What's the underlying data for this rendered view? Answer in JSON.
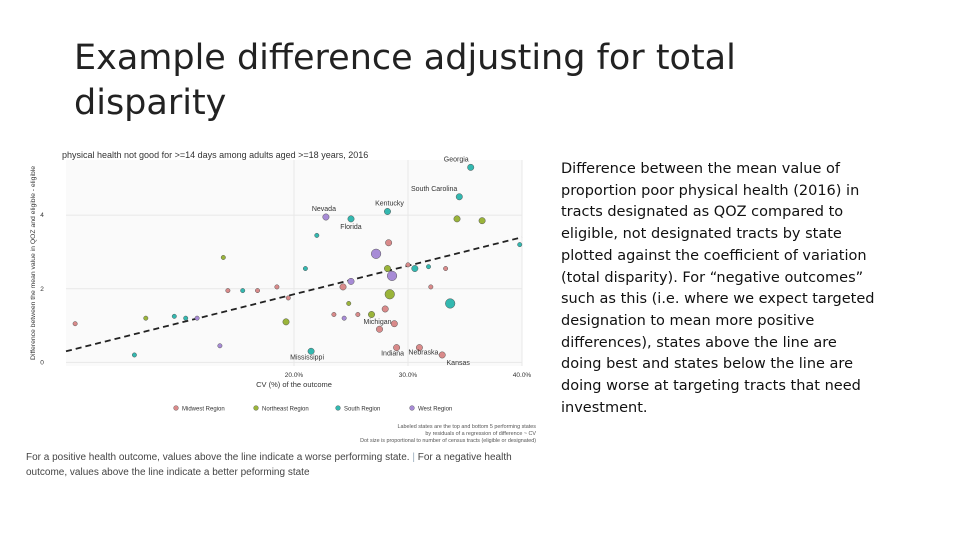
{
  "slide": {
    "title_lines": [
      "Example difference adjusting for total",
      "disparity"
    ],
    "body": "Difference between the mean value of proportion poor physical health (2016) in tracts designated as QOZ compared to eligible, not designated tracts by state plotted against the coefficient of variation (total disparity). For “negative outcomes” such as this (i.e. where we expect targeted designation to mean more positive differences), states above the line are doing best and states below the line are doing worse at targeting tracts that need investment.",
    "footnote": {
      "part1": "For a positive health outcome, values above the line indicate a worse performing state.",
      "separator": "|",
      "part2": "For a negative health outcome, values above the line indicate a better peforming state"
    }
  },
  "colors": {
    "Midwest Region": "#d98a8a",
    "Northeast Region": "#9ab43a",
    "South Region": "#33b8b0",
    "West Region": "#a78bd6"
  },
  "chart_data": {
    "type": "scatter",
    "title": "physical health not good for >=14 days among adults aged >=18 years, 2016",
    "xlabel": "CV (%) of the outcome",
    "ylabel": "Difference between the mean value in QOZ and eligible - eligible",
    "xlim": [
      0,
      40
    ],
    "ylim": [
      -0.1,
      5.5
    ],
    "x_ticks": [
      20,
      30,
      40
    ],
    "x_tick_labels": [
      "20.0%",
      "30.0%",
      "40.0%"
    ],
    "y_ticks": [
      0,
      2,
      4
    ],
    "y_tick_labels": [
      "0",
      "2",
      "4"
    ],
    "trend_line": [
      [
        0,
        0.3
      ],
      [
        40,
        3.4
      ]
    ],
    "legend_entries": [
      "Midwest Region",
      "Northeast Region",
      "South Region",
      "West Region"
    ],
    "note_lines": [
      "Labeled states are the top and bottom 5 performing states",
      "by residuals of a regression of difference ~ CV",
      "Dot size is proportional to number of census tracts (eligible or designated)"
    ],
    "points": [
      {
        "x": 35.5,
        "y": 5.3,
        "region": "South Region",
        "size": 2,
        "label": "Georgia"
      },
      {
        "x": 34.5,
        "y": 4.5,
        "region": "South Region",
        "size": 2,
        "label": "South Carolina"
      },
      {
        "x": 28.2,
        "y": 4.1,
        "region": "South Region",
        "size": 2,
        "label": "Kentucky"
      },
      {
        "x": 22.8,
        "y": 3.95,
        "region": "West Region",
        "size": 2,
        "label": "Nevada"
      },
      {
        "x": 25.0,
        "y": 3.9,
        "region": "South Region",
        "size": 2,
        "label": "Florida"
      },
      {
        "x": 21.5,
        "y": 0.3,
        "region": "South Region",
        "size": 2,
        "label": "Mississippi"
      },
      {
        "x": 27.5,
        "y": 0.9,
        "region": "Midwest Region",
        "size": 2,
        "label": "Michigan"
      },
      {
        "x": 29.0,
        "y": 0.4,
        "region": "Midwest Region",
        "size": 2,
        "label": "Indiana"
      },
      {
        "x": 31.0,
        "y": 0.4,
        "region": "Midwest Region",
        "size": 2,
        "label": "Nebraska"
      },
      {
        "x": 33.0,
        "y": 0.2,
        "region": "Midwest Region",
        "size": 2,
        "label": "Kansas"
      },
      {
        "x": 0.8,
        "y": 1.05,
        "region": "Midwest Region",
        "size": 1
      },
      {
        "x": 7.0,
        "y": 1.2,
        "region": "Northeast Region",
        "size": 1
      },
      {
        "x": 9.5,
        "y": 1.25,
        "region": "South Region",
        "size": 1
      },
      {
        "x": 10.5,
        "y": 1.2,
        "region": "South Region",
        "size": 1
      },
      {
        "x": 11.5,
        "y": 1.2,
        "region": "West Region",
        "size": 1
      },
      {
        "x": 6.0,
        "y": 0.2,
        "region": "South Region",
        "size": 1
      },
      {
        "x": 13.5,
        "y": 0.45,
        "region": "West Region",
        "size": 1
      },
      {
        "x": 13.8,
        "y": 2.85,
        "region": "Northeast Region",
        "size": 1
      },
      {
        "x": 14.2,
        "y": 1.95,
        "region": "Midwest Region",
        "size": 1
      },
      {
        "x": 15.5,
        "y": 1.95,
        "region": "South Region",
        "size": 1
      },
      {
        "x": 16.8,
        "y": 1.95,
        "region": "Midwest Region",
        "size": 1
      },
      {
        "x": 18.5,
        "y": 2.05,
        "region": "Midwest Region",
        "size": 1
      },
      {
        "x": 19.5,
        "y": 1.75,
        "region": "Midwest Region",
        "size": 1
      },
      {
        "x": 19.3,
        "y": 1.1,
        "region": "Northeast Region",
        "size": 2
      },
      {
        "x": 21.0,
        "y": 2.55,
        "region": "South Region",
        "size": 1
      },
      {
        "x": 22.0,
        "y": 3.45,
        "region": "South Region",
        "size": 1
      },
      {
        "x": 24.3,
        "y": 2.05,
        "region": "Midwest Region",
        "size": 2
      },
      {
        "x": 25.0,
        "y": 2.2,
        "region": "West Region",
        "size": 2
      },
      {
        "x": 24.8,
        "y": 1.6,
        "region": "Northeast Region",
        "size": 1
      },
      {
        "x": 23.5,
        "y": 1.3,
        "region": "Midwest Region",
        "size": 1
      },
      {
        "x": 24.4,
        "y": 1.2,
        "region": "West Region",
        "size": 1
      },
      {
        "x": 25.6,
        "y": 1.3,
        "region": "Midwest Region",
        "size": 1
      },
      {
        "x": 26.8,
        "y": 1.3,
        "region": "Northeast Region",
        "size": 2
      },
      {
        "x": 27.2,
        "y": 2.95,
        "region": "West Region",
        "size": 3
      },
      {
        "x": 28.3,
        "y": 3.25,
        "region": "Midwest Region",
        "size": 2
      },
      {
        "x": 28.2,
        "y": 2.55,
        "region": "Northeast Region",
        "size": 2
      },
      {
        "x": 28.6,
        "y": 2.35,
        "region": "West Region",
        "size": 3
      },
      {
        "x": 28.4,
        "y": 1.85,
        "region": "Northeast Region",
        "size": 3
      },
      {
        "x": 28.0,
        "y": 1.45,
        "region": "Midwest Region",
        "size": 2
      },
      {
        "x": 28.8,
        "y": 1.05,
        "region": "Midwest Region",
        "size": 2
      },
      {
        "x": 30.0,
        "y": 2.65,
        "region": "Midwest Region",
        "size": 1
      },
      {
        "x": 30.6,
        "y": 2.55,
        "region": "South Region",
        "size": 2
      },
      {
        "x": 31.8,
        "y": 2.6,
        "region": "South Region",
        "size": 1
      },
      {
        "x": 32.0,
        "y": 2.05,
        "region": "Midwest Region",
        "size": 1
      },
      {
        "x": 33.3,
        "y": 2.55,
        "region": "Midwest Region",
        "size": 1
      },
      {
        "x": 33.7,
        "y": 1.6,
        "region": "South Region",
        "size": 3
      },
      {
        "x": 34.3,
        "y": 3.9,
        "region": "Northeast Region",
        "size": 2
      },
      {
        "x": 36.5,
        "y": 3.85,
        "region": "Northeast Region",
        "size": 2
      },
      {
        "x": 39.8,
        "y": 3.2,
        "region": "South Region",
        "size": 1
      }
    ]
  }
}
